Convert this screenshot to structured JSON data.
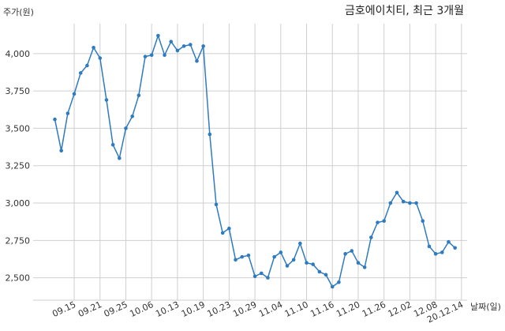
{
  "chart_data": {
    "type": "line",
    "title": "금호에이치티, 최근 3개월",
    "ylabel": "주가(원)",
    "xlabel": "날짜(일)",
    "ylim": [
      2350,
      4200
    ],
    "yticks": [
      2500,
      2750,
      3000,
      3250,
      3500,
      3750,
      4000
    ],
    "ytick_labels": [
      "2,500",
      "2,750",
      "3,000",
      "3,250",
      "3,500",
      "3,750",
      "4,000"
    ],
    "xtick_labels": [
      "09.15",
      "09.21",
      "09.25",
      "10.06",
      "10.13",
      "10.19",
      "10.23",
      "10.29",
      "11.04",
      "11.10",
      "11.16",
      "11.20",
      "11.26",
      "12.02",
      "12.08",
      "20.12.14"
    ],
    "xtick_indices": [
      3,
      7,
      11,
      15,
      19,
      23,
      27,
      31,
      35,
      39,
      43,
      47,
      51,
      55,
      59,
      63
    ],
    "grid": true,
    "line_color": "#2f7bbf",
    "series": [
      {
        "values": [
          3560,
          3350,
          3600,
          3730,
          3870,
          3920,
          4040,
          3970,
          3690,
          3390,
          3300,
          3500,
          3580,
          3720,
          3980,
          3990,
          4120,
          3990,
          4080,
          4020,
          4050,
          4060,
          3950,
          4050,
          3460,
          2990,
          2800,
          2830,
          2620,
          2640,
          2650,
          2510,
          2530,
          2500,
          2640,
          2670,
          2580,
          2620,
          2730,
          2600,
          2590,
          2540,
          2520,
          2440,
          2470,
          2660,
          2680,
          2600,
          2570,
          2770,
          2870,
          2880,
          3000,
          3070,
          3010,
          3000,
          3000,
          2880,
          2710,
          2660,
          2670,
          2740,
          2700
        ]
      }
    ]
  }
}
